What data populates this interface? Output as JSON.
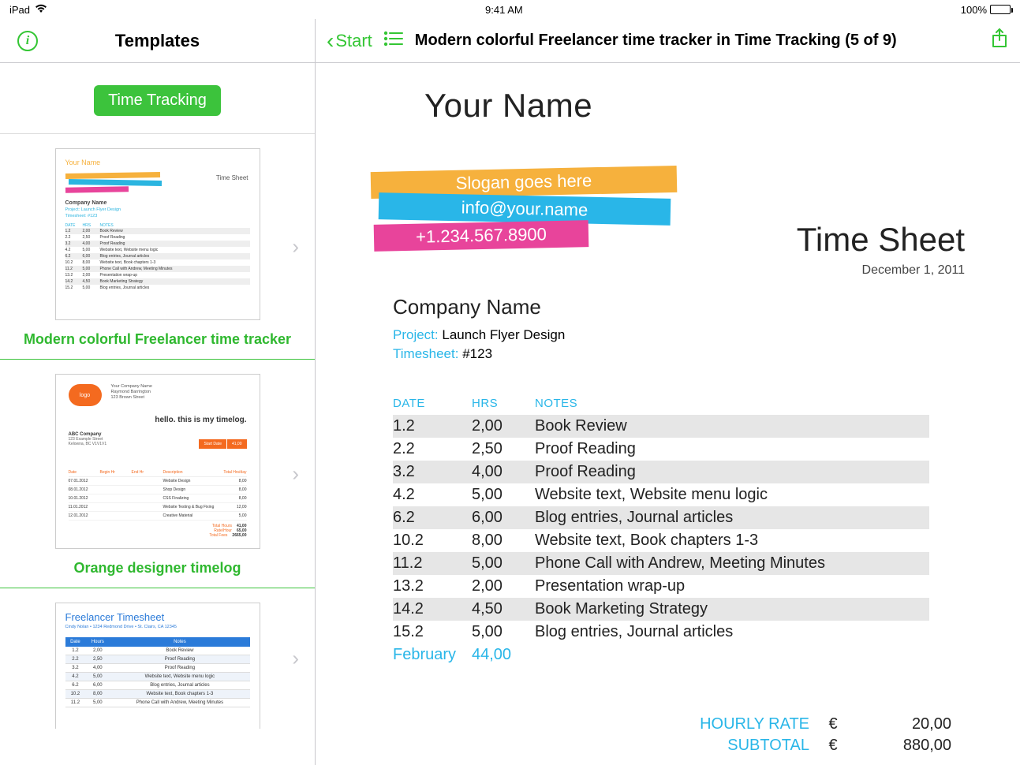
{
  "statusbar": {
    "device": "iPad",
    "time": "9:41 AM",
    "battery": "100%"
  },
  "header": {
    "templates_title": "Templates",
    "back_label": "Start",
    "doc_title": "Modern colorful Freelancer time tracker in Time Tracking (5 of 9)"
  },
  "sidebar": {
    "category_pill": "Time Tracking",
    "templates": [
      {
        "caption": "Modern colorful Freelancer time tracker"
      },
      {
        "caption": "Orange designer timelog"
      },
      {
        "caption": "Freelancer Timesheet"
      }
    ],
    "thumb1": {
      "name": "Your Name",
      "timesheet_label": "Time Sheet",
      "company": "Company Name",
      "project": "Project: Launch Flyer Design",
      "timesheet": "Timesheet: #123",
      "head_date": "DATE",
      "head_hrs": "HRS",
      "head_notes": "NOTES",
      "rows": [
        [
          "1.2",
          "2,00",
          "Book Review"
        ],
        [
          "2.2",
          "2,50",
          "Proof Reading"
        ],
        [
          "3.2",
          "4,00",
          "Proof Reading"
        ],
        [
          "4.2",
          "5,00",
          "Website text, Website menu logic"
        ],
        [
          "6.2",
          "6,00",
          "Blog entries, Journal articles"
        ],
        [
          "10.2",
          "8,00",
          "Website text, Book chapters 1-3"
        ],
        [
          "11.2",
          "5,00",
          "Phone Call with Andrew, Meeting Minutes"
        ],
        [
          "13.2",
          "2,00",
          "Presentation wrap-up"
        ],
        [
          "14.2",
          "4,50",
          "Book Marketing Strategy"
        ],
        [
          "15.2",
          "5,00",
          "Blog entries, Journal articles"
        ]
      ]
    },
    "thumb2": {
      "logo": "logo",
      "company": "Your Company Name",
      "addr2": "Raymond Barrington",
      "addr3": "123 Brown Street",
      "hello": "hello. this is my timelog.",
      "client": "ABC Company",
      "client2": "123 Example Street",
      "client3": "Kelowna, BC V1V1V1",
      "box1": "Start Date",
      "box2": "41,00",
      "h1": "Date",
      "h2": "Begin Hr",
      "h3": "End Hr",
      "h4": "Description",
      "h5": "Total Hrs/day",
      "rows": [
        [
          "07.01.2012",
          "",
          "",
          "Website Design",
          "8,00"
        ],
        [
          "08.01.2012",
          "",
          "",
          "Shop Design",
          "8,00"
        ],
        [
          "10.01.2012",
          "",
          "",
          "CSS Finalizing",
          "8,00"
        ],
        [
          "11.01.2012",
          "",
          "",
          "Website Testing & Bug Fixing",
          "12,00"
        ],
        [
          "12.01.2012",
          "",
          "",
          "Creative Material",
          "5,00"
        ]
      ],
      "totals": [
        [
          "Total Hours",
          "41,00"
        ],
        [
          "Rate/Hour",
          "65,00"
        ],
        [
          "Total Fees",
          "2665,00"
        ]
      ]
    },
    "thumb3": {
      "title": "Freelancer Timesheet",
      "sub": "Cindy Nolan • 1234 Redmond Drive • St. Clairs, CA 12345",
      "h1": "Date",
      "h2": "Hours",
      "h3": "Notes",
      "rows": [
        [
          "1.2",
          "2,00",
          "Book Review"
        ],
        [
          "2.2",
          "2,50",
          "Proof Reading"
        ],
        [
          "3.2",
          "4,00",
          "Proof Reading"
        ],
        [
          "4.2",
          "5,00",
          "Website text, Website menu logic"
        ],
        [
          "6.2",
          "6,00",
          "Blog entries, Journal articles"
        ],
        [
          "10.2",
          "8,00",
          "Website text, Book chapters 1-3"
        ],
        [
          "11.2",
          "5,00",
          "Phone Call with Andrew, Meeting Minutes"
        ]
      ]
    }
  },
  "document": {
    "name": "Your Name",
    "slogan": "Slogan goes here",
    "email": "info@your.name",
    "phone": "+1.234.567.8900",
    "timesheet_title": "Time Sheet",
    "timesheet_date": "December 1, 2011",
    "company_name": "Company Name",
    "project_label": "Project:",
    "project_value": "Launch Flyer Design",
    "timesheet_label": "Timesheet:",
    "timesheet_value": "#123",
    "columns": {
      "date": "DATE",
      "hrs": "HRS",
      "notes": "NOTES"
    },
    "rows": [
      {
        "date": "1.2",
        "hrs": "2,00",
        "notes": "Book Review"
      },
      {
        "date": "2.2",
        "hrs": "2,50",
        "notes": "Proof Reading"
      },
      {
        "date": "3.2",
        "hrs": "4,00",
        "notes": "Proof Reading"
      },
      {
        "date": "4.2",
        "hrs": "5,00",
        "notes": "Website text, Website menu logic"
      },
      {
        "date": "6.2",
        "hrs": "6,00",
        "notes": "Blog entries, Journal articles"
      },
      {
        "date": "10.2",
        "hrs": "8,00",
        "notes": "Website text, Book chapters 1-3"
      },
      {
        "date": "11.2",
        "hrs": "5,00",
        "notes": "Phone Call with Andrew, Meeting Minutes"
      },
      {
        "date": "13.2",
        "hrs": "2,00",
        "notes": "Presentation wrap-up"
      },
      {
        "date": "14.2",
        "hrs": "4,50",
        "notes": "Book Marketing Strategy"
      },
      {
        "date": "15.2",
        "hrs": "5,00",
        "notes": "Blog entries, Journal articles"
      }
    ],
    "total_row": {
      "date": "February",
      "hrs": "44,00"
    },
    "totals": {
      "hourly_label": "HOURLY RATE",
      "hourly_cur": "€",
      "hourly_val": "20,00",
      "subtotal_label": "SUBTOTAL",
      "subtotal_cur": "€",
      "subtotal_val": "880,00"
    },
    "colors": {
      "accent": "#29b6e8",
      "stripe_yellow": "#f6b13d",
      "stripe_blue": "#29b6e8",
      "stripe_pink": "#e8449b",
      "row_alt": "#e6e6e6",
      "ios_green": "#34c634"
    }
  }
}
